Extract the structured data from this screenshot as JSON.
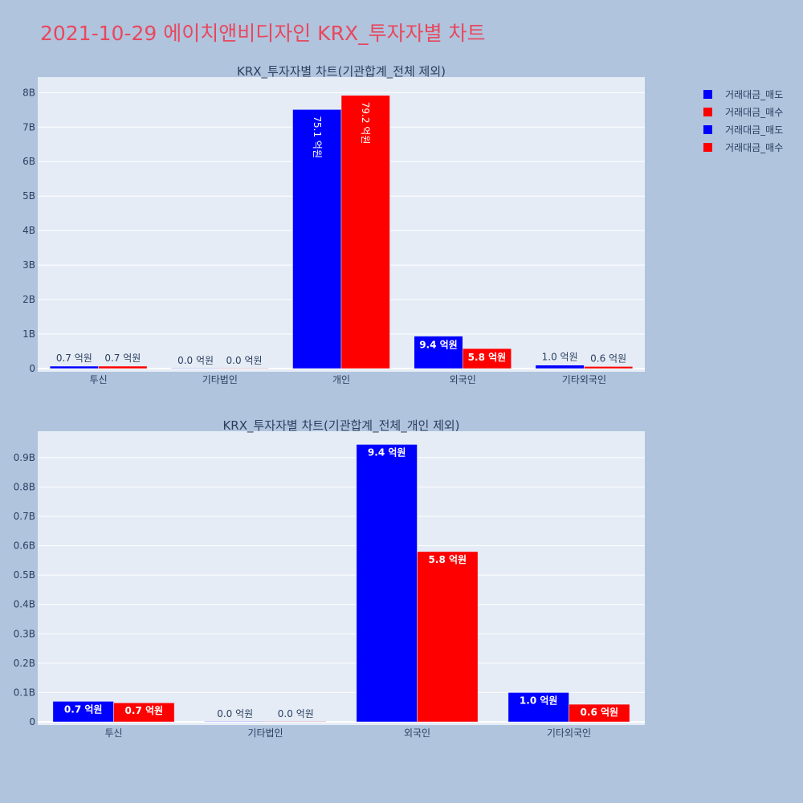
{
  "title": "2021-10-29 에이치앤비디자인 KRX_투자자별 차트",
  "legend": [
    {
      "label": "거래대금_매도",
      "color": "#0000ff"
    },
    {
      "label": "거래대금_매수",
      "color": "#ff0000"
    },
    {
      "label": "거래대금_매도",
      "color": "#0000ff"
    },
    {
      "label": "거래대금_매수",
      "color": "#ff0000"
    }
  ],
  "chart_data": [
    {
      "type": "bar",
      "title": "KRX_투자자별 차트(기관합계_전체 제외)",
      "categories": [
        "투신",
        "기타법인",
        "개인",
        "외국인",
        "기타외국인"
      ],
      "ylim": [
        0,
        8.45
      ],
      "yticks": [
        0,
        1,
        2,
        3,
        4,
        5,
        6,
        7,
        8
      ],
      "ytick_labels": [
        "0",
        "1B",
        "2B",
        "3B",
        "4B",
        "5B",
        "6B",
        "7B",
        "8B"
      ],
      "grid": true,
      "series": [
        {
          "name": "거래대금_매도",
          "color": "#0000ff",
          "values": [
            0.07,
            0.0,
            7.51,
            0.94,
            0.1
          ],
          "labels": [
            "0.7 억원",
            "0.0 억원",
            "75.1 억원",
            "9.4 억원",
            "1.0 억원"
          ]
        },
        {
          "name": "거래대금_매수",
          "color": "#ff0000",
          "values": [
            0.07,
            0.0,
            7.92,
            0.58,
            0.06
          ],
          "labels": [
            "0.7 억원",
            "0.0 억원",
            "79.2 억원",
            "5.8 억원",
            "0.6 억원"
          ]
        }
      ]
    },
    {
      "type": "bar",
      "title": "KRX_투자자별 차트(기관합계_전체_개인 제외)",
      "categories": [
        "투신",
        "기타법인",
        "외국인",
        "기타외국인"
      ],
      "ylim": [
        0,
        0.99
      ],
      "yticks": [
        0,
        0.1,
        0.2,
        0.3,
        0.4,
        0.5,
        0.6,
        0.7,
        0.8,
        0.9
      ],
      "ytick_labels": [
        "0",
        "0.1B",
        "0.2B",
        "0.3B",
        "0.4B",
        "0.5B",
        "0.6B",
        "0.7B",
        "0.8B",
        "0.9B"
      ],
      "grid": true,
      "series": [
        {
          "name": "거래대금_매도",
          "color": "#0000ff",
          "values": [
            0.07,
            0.0,
            0.945,
            0.1
          ],
          "labels": [
            "0.7 억원",
            "0.0 억원",
            "9.4 억원",
            "1.0 억원"
          ]
        },
        {
          "name": "거래대금_매수",
          "color": "#ff0000",
          "values": [
            0.065,
            0.0,
            0.58,
            0.06
          ],
          "labels": [
            "0.7 억원",
            "0.0 억원",
            "5.8 억원",
            "0.6 억원"
          ]
        }
      ]
    }
  ]
}
